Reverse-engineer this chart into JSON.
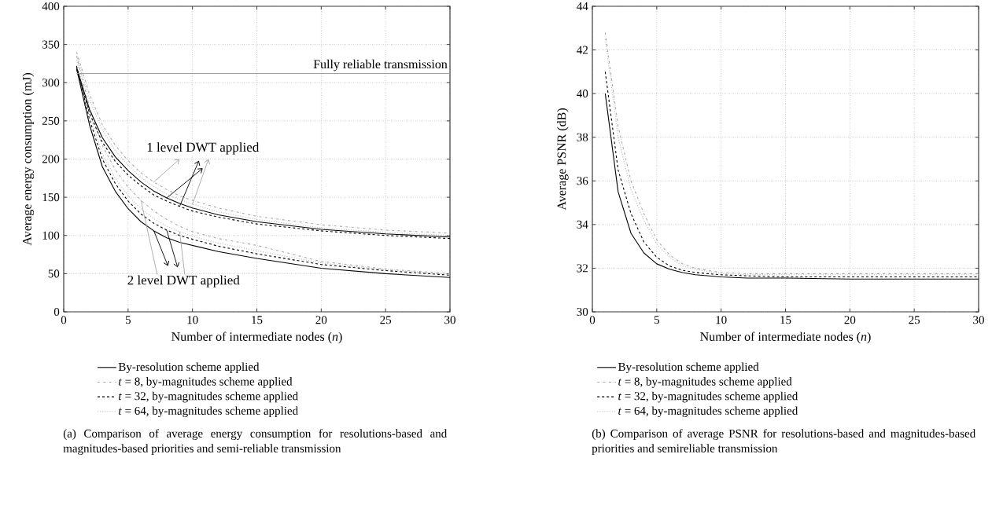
{
  "chart_data": [
    {
      "type": "line",
      "xlabel": "Number of intermediate nodes (*n*)",
      "ylabel": "Average energy consumption (mJ)",
      "x": [
        1,
        2,
        3,
        4,
        5,
        6,
        7,
        8,
        9,
        10,
        12,
        15,
        20,
        25,
        30
      ],
      "xlim": [
        0,
        30
      ],
      "ylim": [
        0,
        400
      ],
      "xticks": [
        0,
        5,
        10,
        15,
        20,
        25,
        30
      ],
      "yticks": [
        0,
        50,
        100,
        150,
        200,
        250,
        300,
        350,
        400
      ],
      "grid": true,
      "legend": "bottom",
      "series": [
        {
          "name": "By-resolution scheme applied",
          "color": "#000000",
          "line_style": "solid",
          "values": [
            318,
            245,
            190,
            158,
            135,
            118,
            106,
            97,
            91,
            87,
            79,
            70,
            57,
            50,
            45
          ]
        },
        {
          "name": "*t* = 8, by-magnitudes scheme applied",
          "color": "#aaaaaa",
          "line_style": "dashdot",
          "values": [
            335,
            268,
            218,
            186,
            163,
            146,
            132,
            121,
            112,
            105,
            96,
            87,
            66,
            56,
            50
          ]
        },
        {
          "name": "*t* = 32, by-magnitudes scheme applied",
          "color": "#000000",
          "line_style": "dashed",
          "values": [
            322,
            252,
            200,
            168,
            145,
            128,
            116,
            107,
            100,
            95,
            86,
            76,
            62,
            54,
            48
          ]
        },
        {
          "name": "*t* = 64, by-magnitudes scheme applied",
          "color": "#bbbbbb",
          "line_style": "dotted",
          "values": [
            330,
            260,
            207,
            175,
            152,
            135,
            122,
            112,
            105,
            99,
            90,
            80,
            64,
            55,
            49
          ]
        },
        {
          "color": "#000000",
          "line_style": "solid",
          "values": [
            320,
            265,
            228,
            203,
            185,
            170,
            158,
            149,
            142,
            136,
            127,
            118,
            108,
            102,
            98
          ]
        },
        {
          "color": "#aaaaaa",
          "line_style": "dashdot",
          "values": [
            340,
            285,
            245,
            218,
            198,
            182,
            170,
            160,
            152,
            146,
            136,
            125,
            114,
            107,
            103
          ]
        },
        {
          "color": "#000000",
          "line_style": "dashed",
          "values": [
            318,
            260,
            222,
            197,
            179,
            165,
            153,
            145,
            138,
            132,
            124,
            115,
            106,
            100,
            96
          ]
        },
        {
          "color": "#bbbbbb",
          "line_style": "dotted",
          "values": [
            335,
            278,
            238,
            211,
            192,
            176,
            164,
            154,
            147,
            141,
            131,
            121,
            110,
            104,
            100
          ]
        }
      ],
      "ref_lines": [
        {
          "axis": "y",
          "value": 312,
          "label": "Fully reliable transmission",
          "color": "#999999"
        }
      ],
      "annotations": [
        {
          "text": "1 level DWT applied",
          "x": 8,
          "y": 149
        },
        {
          "text": "2 level DWT applied",
          "x": 7,
          "y": 106
        },
        "(a) Comparison of average energy consumption for resolutions-based and magnitudes-based priorities and semi-reliable transmission"
      ]
    },
    {
      "type": "line",
      "xlabel": "Number of intermediate nodes (*n*)",
      "ylabel": "Average PSNR (dB)",
      "x": [
        1,
        2,
        3,
        4,
        5,
        6,
        7,
        8,
        9,
        10,
        12,
        15,
        20,
        25,
        30
      ],
      "xlim": [
        0,
        30
      ],
      "ylim": [
        30,
        44
      ],
      "xticks": [
        0,
        5,
        10,
        15,
        20,
        25,
        30
      ],
      "yticks": [
        30,
        32,
        34,
        36,
        38,
        40,
        42,
        44
      ],
      "grid": true,
      "legend": "bottom",
      "series": [
        {
          "name": "By-resolution scheme applied",
          "color": "#000000",
          "line_style": "solid",
          "values": [
            40,
            35.5,
            33.6,
            32.7,
            32.2,
            31.95,
            31.8,
            31.7,
            31.65,
            31.6,
            31.55,
            31.55,
            31.5,
            31.5,
            31.5
          ]
        },
        {
          "name": "*t* = 8, by-magnitudes scheme applied",
          "color": "#aaaaaa",
          "line_style": "dashdot",
          "values": [
            42.8,
            38.5,
            36,
            34.5,
            33.3,
            32.6,
            32.2,
            32,
            31.9,
            31.8,
            31.75,
            31.75,
            31.75,
            31.75,
            31.75
          ]
        },
        {
          "name": "*t* = 32, by-magnitudes scheme applied",
          "color": "#000000",
          "line_style": "dashed",
          "values": [
            41,
            36.5,
            34.5,
            33.2,
            32.5,
            32.1,
            31.9,
            31.8,
            31.75,
            31.7,
            31.65,
            31.6,
            31.6,
            31.6,
            31.6
          ]
        },
        {
          "name": "*t* = 64, by-magnitudes scheme applied",
          "color": "#bbbbbb",
          "line_style": "dotted",
          "values": [
            42.5,
            38,
            35.6,
            34.2,
            33.1,
            32.5,
            32.1,
            31.95,
            31.85,
            31.75,
            31.7,
            31.7,
            31.7,
            31.7,
            31.7
          ]
        }
      ],
      "annotations": [
        "(b) Comparison of average PSNR for resolutions-based and magnitudes-based priorities and semireliable transmission"
      ]
    }
  ]
}
